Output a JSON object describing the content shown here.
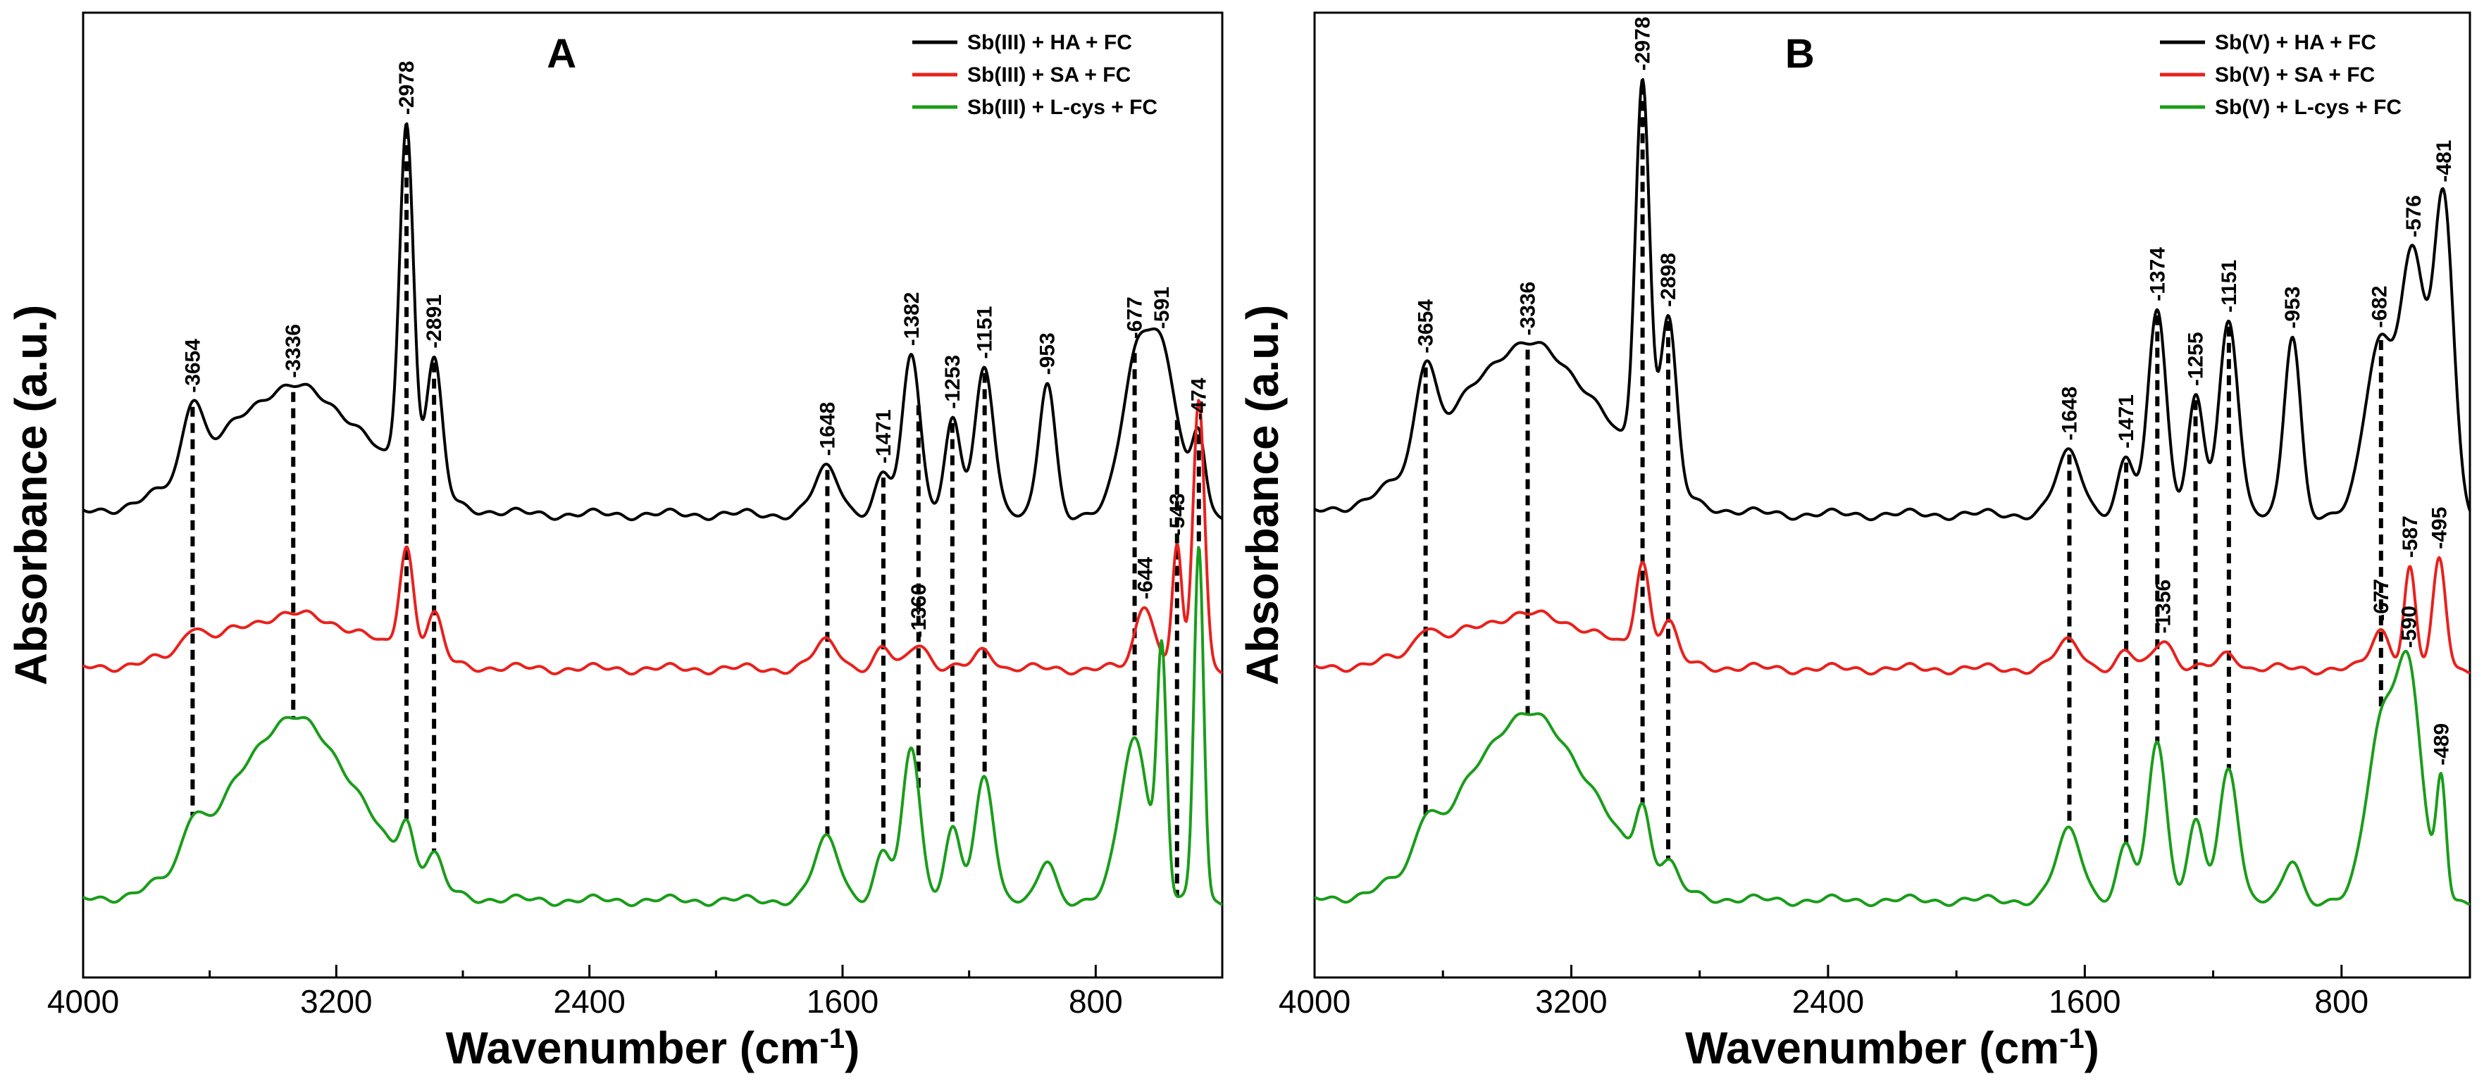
{
  "chart_data": [
    {
      "type": "line",
      "panel": "A",
      "title": "A",
      "xlabel": "Wavenumber (cm-1)",
      "xlabel_main": "Wavenumber (cm",
      "xlabel_sup": "-1",
      "xlabel_end": ")",
      "ylabel": "Absorbance (a.u.)",
      "xlim": [
        4000,
        400
      ],
      "x_reversed": true,
      "xticks": [
        4000,
        3200,
        2400,
        1600,
        800
      ],
      "xtick_labels": [
        "4000",
        "3200",
        "2400",
        "1600",
        "800"
      ],
      "legend_position": "top-right",
      "series": [
        {
          "name": "Sb(III) + HA + FC",
          "color": "#000000",
          "baseline": 5.0,
          "peaks": [
            [
              3654,
              0.9,
              30
            ],
            [
              3336,
              1.65,
              230
            ],
            [
              2978,
              4.6,
              22
            ],
            [
              2891,
              1.75,
              25
            ],
            [
              1648,
              0.6,
              40
            ],
            [
              1471,
              0.5,
              25
            ],
            [
              1382,
              2.1,
              28
            ],
            [
              1253,
              1.2,
              25
            ],
            [
              1151,
              1.9,
              30
            ],
            [
              953,
              1.7,
              25
            ],
            [
              677,
              1.7,
              45
            ],
            [
              591,
              2.0,
              50
            ],
            [
              474,
              1.0,
              20
            ]
          ],
          "label_peaks": [
            3654,
            3336,
            2978,
            2891,
            1648,
            1471,
            1382,
            1253,
            1151,
            953,
            677,
            591,
            474
          ]
        },
        {
          "name": "Sb(III) + SA + FC",
          "color": "#e8211d",
          "baseline": 3.0,
          "peaks": [
            [
              3654,
              0.3,
              30
            ],
            [
              3336,
              0.7,
              230
            ],
            [
              2978,
              1.4,
              22
            ],
            [
              2891,
              0.6,
              25
            ],
            [
              1648,
              0.35,
              40
            ],
            [
              1471,
              0.25,
              25
            ],
            [
              1360,
              0.35,
              30
            ],
            [
              1151,
              0.25,
              30
            ],
            [
              644,
              0.85,
              30
            ],
            [
              543,
              1.6,
              15
            ],
            [
              474,
              3.5,
              18
            ]
          ],
          "label_peaks": [
            1360,
            644,
            543
          ]
        },
        {
          "name": "Sb(III) + L-cys + FC",
          "color": "#1a9d1a",
          "baseline": 0.0,
          "peaks": [
            [
              3654,
              0.5,
              30
            ],
            [
              3336,
              2.35,
              200
            ],
            [
              2978,
              0.6,
              22
            ],
            [
              2891,
              0.4,
              25
            ],
            [
              1648,
              0.8,
              40
            ],
            [
              1471,
              0.6,
              25
            ],
            [
              1382,
              2.0,
              28
            ],
            [
              1253,
              0.9,
              25
            ],
            [
              1151,
              1.6,
              30
            ],
            [
              953,
              0.5,
              25
            ],
            [
              677,
              2.1,
              45
            ],
            [
              591,
              3.0,
              15
            ],
            [
              474,
              4.6,
              15
            ]
          ],
          "label_peaks": []
        }
      ],
      "drop_lines": [
        3654,
        3336,
        2978,
        2891,
        1648,
        1471,
        1360,
        1253,
        1151,
        677,
        543,
        474
      ]
    },
    {
      "type": "line",
      "panel": "B",
      "title": "B",
      "xlabel": "Wavenumber (cm-1)",
      "xlabel_main": "Wavenumber (cm",
      "xlabel_sup": "-1",
      "xlabel_end": ")",
      "ylabel": "Absorbance (a.u.)",
      "xlim": [
        4000,
        400
      ],
      "x_reversed": true,
      "xticks": [
        4000,
        3200,
        2400,
        1600,
        800
      ],
      "xtick_labels": [
        "4000",
        "3200",
        "2400",
        "1600",
        "800"
      ],
      "legend_position": "top-right",
      "series": [
        {
          "name": "Sb(V) + HA + FC",
          "color": "#000000",
          "baseline": 5.0,
          "peaks": [
            [
              3654,
              1.2,
              30
            ],
            [
              3336,
              2.2,
              230
            ],
            [
              2978,
              5.0,
              22
            ],
            [
              2898,
              2.2,
              25
            ],
            [
              1648,
              0.8,
              40
            ],
            [
              1471,
              0.7,
              25
            ],
            [
              1374,
              2.7,
              28
            ],
            [
              1255,
              1.5,
              25
            ],
            [
              1151,
              2.5,
              30
            ],
            [
              953,
              2.3,
              25
            ],
            [
              682,
              2.2,
              45
            ],
            [
              576,
              3.3,
              40
            ],
            [
              481,
              4.0,
              30
            ]
          ],
          "label_peaks": [
            3654,
            3336,
            2978,
            2898,
            1648,
            1471,
            1374,
            1255,
            1151,
            953,
            682,
            576,
            481
          ]
        },
        {
          "name": "Sb(V) + SA + FC",
          "color": "#e8211d",
          "baseline": 3.0,
          "peaks": [
            [
              3654,
              0.3,
              30
            ],
            [
              3336,
              0.7,
              230
            ],
            [
              2978,
              1.2,
              22
            ],
            [
              2898,
              0.5,
              25
            ],
            [
              1648,
              0.35,
              40
            ],
            [
              1471,
              0.2,
              25
            ],
            [
              1356,
              0.4,
              30
            ],
            [
              1151,
              0.2,
              30
            ],
            [
              677,
              0.5,
              30
            ],
            [
              587,
              1.3,
              18
            ],
            [
              495,
              1.4,
              20
            ]
          ],
          "label_peaks": [
            1356,
            677,
            587,
            495
          ]
        },
        {
          "name": "Sb(V) + L-cys + FC",
          "color": "#1a9d1a",
          "baseline": 0.0,
          "peaks": [
            [
              3654,
              0.5,
              30
            ],
            [
              3336,
              2.4,
              200
            ],
            [
              2978,
              0.8,
              22
            ],
            [
              2898,
              0.3,
              25
            ],
            [
              1648,
              0.9,
              40
            ],
            [
              1471,
              0.7,
              25
            ],
            [
              1374,
              2.1,
              28
            ],
            [
              1255,
              1.0,
              25
            ],
            [
              1151,
              1.7,
              30
            ],
            [
              953,
              0.5,
              25
            ],
            [
              677,
              2.2,
              45
            ],
            [
              590,
              2.8,
              40
            ],
            [
              489,
              1.5,
              15
            ]
          ],
          "label_peaks": [
            590,
            489
          ]
        }
      ],
      "drop_lines": [
        3654,
        3336,
        2978,
        2898,
        1648,
        1471,
        1374,
        1255,
        1151,
        677
      ]
    }
  ]
}
